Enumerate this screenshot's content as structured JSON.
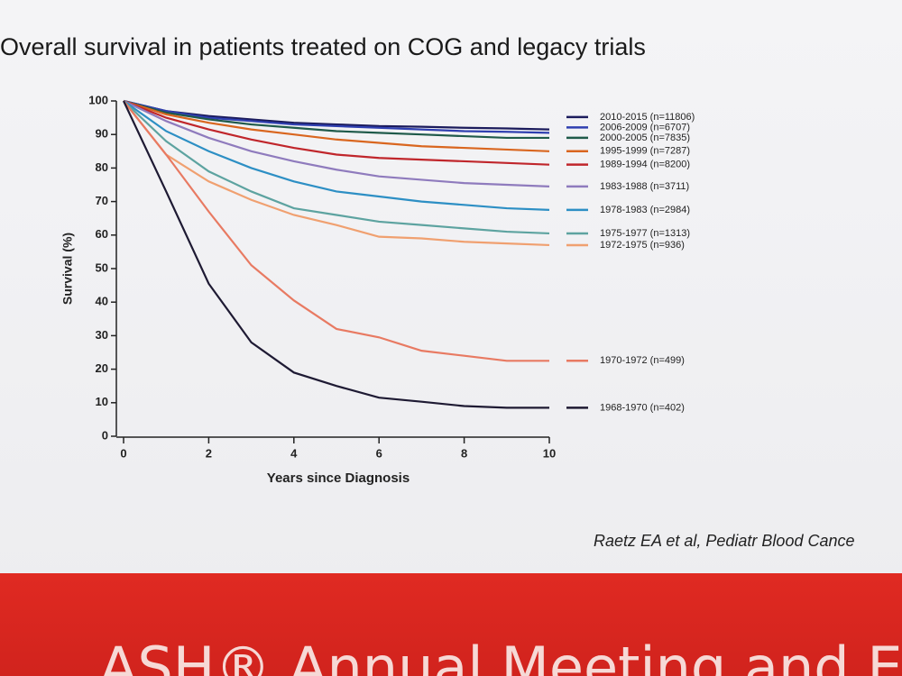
{
  "chart_data": {
    "type": "line",
    "title": "Overall survival in patients treated on COG and legacy trials",
    "x_label": "Years since Diagnosis",
    "y_label": "Survival (%)",
    "x": [
      0,
      1,
      2,
      3,
      4,
      5,
      6,
      7,
      8,
      9,
      10
    ],
    "xlim": [
      0,
      10
    ],
    "xticks": [
      0,
      2,
      4,
      6,
      8,
      10
    ],
    "ylim": [
      0,
      100
    ],
    "yticks": [
      0,
      10,
      20,
      30,
      40,
      50,
      60,
      70,
      80,
      90,
      100
    ],
    "series": [
      {
        "name": "2010-2015 (n=11806)",
        "color": "#1b1b5c",
        "values": [
          100,
          97,
          95.5,
          94.5,
          93.5,
          93,
          92.5,
          92.3,
          92,
          91.8,
          91.5
        ]
      },
      {
        "name": "2006-2009 (n=6707)",
        "color": "#2f3fb0",
        "values": [
          100,
          97,
          95,
          94,
          93,
          92.5,
          92,
          91.5,
          91,
          90.8,
          90.5
        ]
      },
      {
        "name": "2000-2005 (n=7835)",
        "color": "#1f5a4a",
        "values": [
          100,
          96.5,
          94.5,
          93,
          92,
          91,
          90.5,
          90,
          89.5,
          89,
          89
        ]
      },
      {
        "name": "1995-1999 (n=7287)",
        "color": "#d9661f",
        "values": [
          100,
          96,
          93.5,
          91.5,
          90,
          88.5,
          87.5,
          86.5,
          86,
          85.5,
          85
        ]
      },
      {
        "name": "1989-1994 (n=8200)",
        "color": "#c0262b",
        "values": [
          100,
          95,
          91.5,
          88.5,
          86,
          84,
          83,
          82.5,
          82,
          81.5,
          81
        ]
      },
      {
        "name": "1983-1988 (n=3711)",
        "color": "#8f7bbd",
        "values": [
          100,
          94,
          89,
          85,
          82,
          79.5,
          77.5,
          76.5,
          75.5,
          75,
          74.5
        ]
      },
      {
        "name": "1978-1983 (n=2984)",
        "color": "#2d8fc4",
        "values": [
          100,
          91,
          85,
          80,
          76,
          73,
          71.5,
          70,
          69,
          68,
          67.5
        ]
      },
      {
        "name": "1975-1977 (n=1313)",
        "color": "#5da3a0",
        "values": [
          100,
          88,
          79,
          73,
          68,
          66,
          64,
          63,
          62,
          61,
          60.5
        ]
      },
      {
        "name": "1972-1975 (n=936)",
        "color": "#f0a070",
        "values": [
          100,
          84,
          76,
          70.5,
          66,
          63,
          59.5,
          59,
          58,
          57.5,
          57
        ]
      },
      {
        "name": "1970-1972 (n=499)",
        "color": "#e87a62",
        "values": [
          100,
          84,
          67,
          51,
          40.5,
          32,
          29.5,
          25.5,
          24,
          22.5,
          22.5
        ]
      },
      {
        "name": "1968-1970 (n=402)",
        "color": "#1e1a33",
        "values": [
          100,
          73,
          45.5,
          28,
          19,
          15,
          11.5,
          10.3,
          9,
          8.5,
          8.5
        ]
      }
    ]
  },
  "citation": "Raetz EA et al, Pediatr Blood Cance",
  "footer": "ASH® Annual Meeting and Exp"
}
